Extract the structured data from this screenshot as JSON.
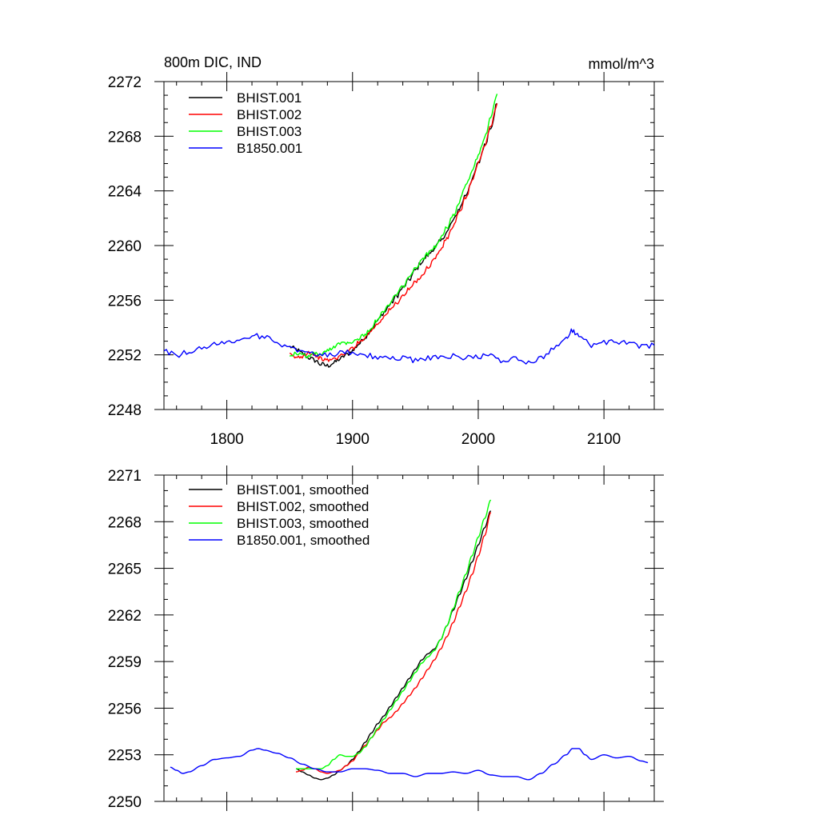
{
  "chart_data": [
    {
      "type": "line",
      "title_left": "800m DIC, IND",
      "title_right": "mmol/m^3",
      "xlim": [
        1750,
        2140
      ],
      "ylim": [
        2248,
        2272
      ],
      "x_ticks": [
        1800,
        1900,
        2000,
        2100
      ],
      "x_tick_labels": [
        "1800",
        "1900",
        "2000",
        "2100"
      ],
      "y_ticks": [
        2248,
        2252,
        2256,
        2260,
        2264,
        2268,
        2272
      ],
      "y_tick_labels": [
        "2248",
        "2252",
        "2256",
        "2260",
        "2264",
        "2268",
        "2272"
      ],
      "legend_position": "top-left",
      "series": [
        {
          "name": "BHIST.001",
          "color": "#000000",
          "x": [
            1850,
            1855,
            1860,
            1865,
            1870,
            1875,
            1880,
            1885,
            1890,
            1895,
            1900,
            1905,
            1910,
            1915,
            1920,
            1925,
            1930,
            1935,
            1940,
            1945,
            1950,
            1955,
            1960,
            1965,
            1970,
            1975,
            1980,
            1985,
            1990,
            1995,
            2000,
            2005,
            2010,
            2015
          ],
          "y": [
            2252.6,
            2252.4,
            2252.1,
            2251.8,
            2251.6,
            2251.3,
            2251.2,
            2251.4,
            2251.7,
            2252.0,
            2252.3,
            2252.8,
            2253.3,
            2253.9,
            2254.5,
            2255.1,
            2255.7,
            2256.3,
            2256.9,
            2257.5,
            2258.2,
            2258.8,
            2259.3,
            2259.8,
            2260.3,
            2261.0,
            2261.8,
            2262.7,
            2263.7,
            2264.8,
            2266.0,
            2267.3,
            2268.7,
            2270.4
          ],
          "jitter": 0.18
        },
        {
          "name": "BHIST.002",
          "color": "#ff0000",
          "x": [
            1850,
            1855,
            1860,
            1865,
            1870,
            1875,
            1880,
            1885,
            1890,
            1895,
            1900,
            1905,
            1910,
            1915,
            1920,
            1925,
            1930,
            1935,
            1940,
            1945,
            1950,
            1955,
            1960,
            1965,
            1970,
            1975,
            1980,
            1985,
            1990,
            1995,
            2000,
            2005,
            2010,
            2015
          ],
          "y": [
            2252.0,
            2251.8,
            2251.9,
            2252.2,
            2252.0,
            2251.7,
            2251.6,
            2251.7,
            2251.9,
            2252.2,
            2252.5,
            2252.9,
            2253.3,
            2253.8,
            2254.3,
            2254.8,
            2255.3,
            2255.8,
            2256.3,
            2256.8,
            2257.3,
            2257.8,
            2258.4,
            2259.0,
            2259.7,
            2260.5,
            2261.4,
            2262.4,
            2263.5,
            2264.7,
            2266.0,
            2267.3,
            2268.7,
            2270.4
          ],
          "jitter": 0.15
        },
        {
          "name": "BHIST.003",
          "color": "#00ff00",
          "x": [
            1850,
            1855,
            1860,
            1865,
            1870,
            1875,
            1880,
            1885,
            1890,
            1895,
            1900,
            1905,
            1910,
            1915,
            1920,
            1925,
            1930,
            1935,
            1940,
            1945,
            1950,
            1955,
            1960,
            1965,
            1970,
            1975,
            1980,
            1985,
            1990,
            1995,
            2000,
            2005,
            2010,
            2015
          ],
          "y": [
            2252.0,
            2252.1,
            2252.0,
            2251.9,
            2252.1,
            2252.0,
            2252.3,
            2252.6,
            2252.9,
            2252.9,
            2253.0,
            2253.2,
            2253.5,
            2254.0,
            2254.6,
            2255.2,
            2255.8,
            2256.4,
            2257.0,
            2257.6,
            2258.3,
            2258.9,
            2259.4,
            2259.9,
            2260.5,
            2261.3,
            2262.2,
            2263.2,
            2264.3,
            2265.4,
            2266.6,
            2267.9,
            2269.4,
            2271.1
          ],
          "jitter": 0.16
        },
        {
          "name": "B1850.001",
          "color": "#0000ff",
          "x": [
            1750,
            1760,
            1770,
            1780,
            1790,
            1800,
            1810,
            1820,
            1830,
            1840,
            1850,
            1860,
            1870,
            1880,
            1890,
            1900,
            1910,
            1920,
            1930,
            1940,
            1950,
            1960,
            1970,
            1980,
            1990,
            2000,
            2010,
            2020,
            2030,
            2040,
            2050,
            2060,
            2070,
            2075,
            2080,
            2090,
            2100,
            2110,
            2120,
            2130,
            2140
          ],
          "y": [
            2252.3,
            2252.0,
            2252.2,
            2252.5,
            2252.8,
            2252.9,
            2253.1,
            2253.4,
            2253.3,
            2252.9,
            2252.5,
            2252.3,
            2252.1,
            2252.0,
            2252.1,
            2252.2,
            2252.0,
            2251.8,
            2251.7,
            2251.8,
            2251.6,
            2251.8,
            2251.8,
            2251.9,
            2251.8,
            2251.9,
            2251.9,
            2251.6,
            2251.7,
            2251.4,
            2251.8,
            2252.5,
            2253.2,
            2253.8,
            2253.4,
            2252.7,
            2252.9,
            2253.0,
            2252.8,
            2252.6,
            2252.7
          ],
          "jitter": 0.2
        }
      ]
    },
    {
      "type": "line",
      "xlim": [
        1750,
        2140
      ],
      "ylim": [
        2250,
        2271
      ],
      "x_ticks": [
        1800,
        1900,
        2000,
        2100
      ],
      "y_ticks": [
        2250,
        2253,
        2256,
        2259,
        2262,
        2265,
        2268,
        2271
      ],
      "y_tick_labels": [
        "2250",
        "2253",
        "2256",
        "2259",
        "2262",
        "2265",
        "2268",
        "2271"
      ],
      "legend_position": "top-left",
      "series": [
        {
          "name": "BHIST.001, smoothed",
          "color": "#000000",
          "x": [
            1855,
            1860,
            1865,
            1870,
            1875,
            1880,
            1885,
            1890,
            1895,
            1900,
            1905,
            1910,
            1915,
            1920,
            1925,
            1930,
            1935,
            1940,
            1945,
            1950,
            1955,
            1960,
            1965,
            1970,
            1975,
            1980,
            1985,
            1990,
            1995,
            2000,
            2005,
            2010
          ],
          "y": [
            2252.1,
            2251.9,
            2251.7,
            2251.5,
            2251.4,
            2251.5,
            2251.7,
            2252.0,
            2252.3,
            2252.7,
            2253.2,
            2253.8,
            2254.4,
            2255.0,
            2255.5,
            2256.1,
            2256.7,
            2257.3,
            2257.9,
            2258.5,
            2259.1,
            2259.5,
            2259.8,
            2260.4,
            2261.3,
            2262.3,
            2263.3,
            2264.3,
            2265.4,
            2266.5,
            2267.6,
            2268.7
          ],
          "jitter": 0
        },
        {
          "name": "BHIST.002, smoothed",
          "color": "#ff0000",
          "x": [
            1855,
            1860,
            1865,
            1870,
            1875,
            1880,
            1885,
            1890,
            1895,
            1900,
            1905,
            1910,
            1915,
            1920,
            1925,
            1930,
            1935,
            1940,
            1945,
            1950,
            1955,
            1960,
            1965,
            1970,
            1975,
            1980,
            1985,
            1990,
            1995,
            2000,
            2005,
            2010
          ],
          "y": [
            2251.9,
            2252.0,
            2252.2,
            2252.1,
            2251.9,
            2251.8,
            2251.9,
            2252.0,
            2252.3,
            2252.6,
            2253.1,
            2253.6,
            2254.1,
            2254.6,
            2255.1,
            2255.4,
            2255.8,
            2256.3,
            2256.8,
            2257.3,
            2257.9,
            2258.5,
            2259.1,
            2259.8,
            2260.6,
            2261.5,
            2262.5,
            2263.5,
            2264.6,
            2265.8,
            2267.1,
            2268.6
          ],
          "jitter": 0
        },
        {
          "name": "BHIST.003, smoothed",
          "color": "#00ff00",
          "x": [
            1855,
            1860,
            1865,
            1870,
            1875,
            1880,
            1885,
            1890,
            1895,
            1900,
            1905,
            1910,
            1915,
            1920,
            1925,
            1930,
            1935,
            1940,
            1945,
            1950,
            1955,
            1960,
            1965,
            1970,
            1975,
            1980,
            1985,
            1990,
            1995,
            2000,
            2005,
            2010
          ],
          "y": [
            2252.1,
            2252.1,
            2252.1,
            2252.1,
            2252.1,
            2252.3,
            2252.7,
            2253.0,
            2252.9,
            2252.9,
            2253.1,
            2253.5,
            2254.1,
            2254.7,
            2255.3,
            2255.9,
            2256.5,
            2257.1,
            2257.7,
            2258.3,
            2258.9,
            2259.3,
            2259.7,
            2260.4,
            2261.3,
            2262.4,
            2263.5,
            2264.6,
            2265.8,
            2267.0,
            2268.2,
            2269.4
          ],
          "jitter": 0
        },
        {
          "name": "B1850.001, smoothed",
          "color": "#0000ff",
          "x": [
            1755,
            1760,
            1765,
            1770,
            1780,
            1790,
            1800,
            1810,
            1820,
            1825,
            1830,
            1840,
            1850,
            1860,
            1870,
            1880,
            1890,
            1900,
            1910,
            1920,
            1930,
            1940,
            1950,
            1960,
            1970,
            1980,
            1990,
            2000,
            2010,
            2020,
            2030,
            2040,
            2050,
            2060,
            2070,
            2075,
            2080,
            2085,
            2090,
            2100,
            2110,
            2120,
            2130,
            2135
          ],
          "y": [
            2252.2,
            2252.0,
            2251.8,
            2251.9,
            2252.3,
            2252.7,
            2252.8,
            2252.9,
            2253.3,
            2253.4,
            2253.3,
            2253.1,
            2252.8,
            2252.4,
            2252.1,
            2251.9,
            2251.9,
            2252.1,
            2252.1,
            2252.0,
            2251.8,
            2251.8,
            2251.6,
            2251.8,
            2251.8,
            2251.9,
            2251.8,
            2252.0,
            2251.7,
            2251.6,
            2251.6,
            2251.4,
            2251.8,
            2252.4,
            2253.0,
            2253.4,
            2253.4,
            2253.0,
            2252.7,
            2253.0,
            2252.8,
            2252.9,
            2252.6,
            2252.5
          ],
          "jitter": 0
        }
      ]
    }
  ]
}
